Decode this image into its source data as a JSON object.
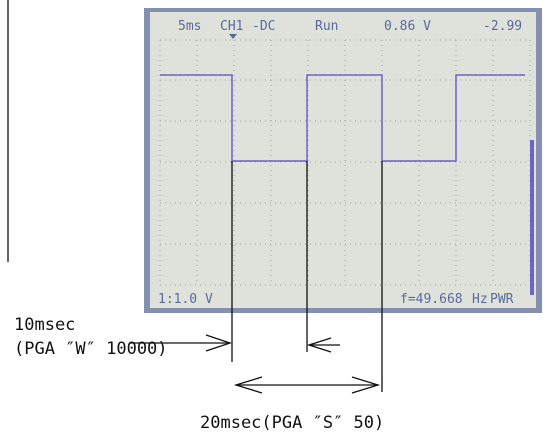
{
  "screen": {
    "timebase": "5ms",
    "channel": "CH1",
    "coupling": "-DC",
    "mode": "Run",
    "trigger_level": "0.86 V",
    "offset": "-2.99",
    "probe": "1:1.0 V",
    "frequency": "f=49.668",
    "frequency_unit": "Hz",
    "power": "PWR"
  },
  "annotations": {
    "short_label": "10msec",
    "short_note": "(PGA ″W″ 10000)",
    "long_label": "20msec(PGA ″S″ 50)"
  }
}
